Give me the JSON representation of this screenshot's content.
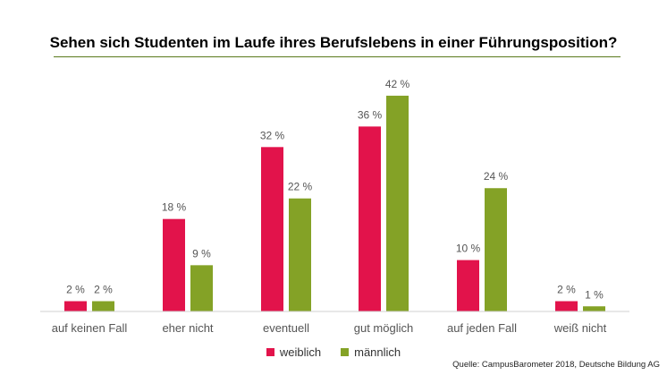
{
  "chart_data": {
    "type": "bar",
    "title": "Sehen sich Studenten im Laufe ihres Berufslebens in einer Führungsposition?",
    "categories": [
      "auf keinen Fall",
      "eher nicht",
      "eventuell",
      "gut möglich",
      "auf jeden Fall",
      "weiß nicht"
    ],
    "series": [
      {
        "name": "weiblich",
        "values": [
          2,
          18,
          32,
          36,
          10,
          2
        ],
        "labels": [
          "2 %",
          "18 %",
          "32 %",
          "36 %",
          "10 %",
          "2 %"
        ],
        "color": "#e2134b"
      },
      {
        "name": "männlich",
        "values": [
          2,
          9,
          22,
          42,
          24,
          1
        ],
        "labels": [
          "2 %",
          "9 %",
          "22 %",
          "42 %",
          "24 %",
          "1 %"
        ],
        "color": "#84a226"
      }
    ],
    "ylim": [
      0,
      45
    ],
    "grid": false,
    "legend_position": "bottom"
  },
  "source": "Quelle: CampusBarometer 2018, Deutsche Bildung AG"
}
